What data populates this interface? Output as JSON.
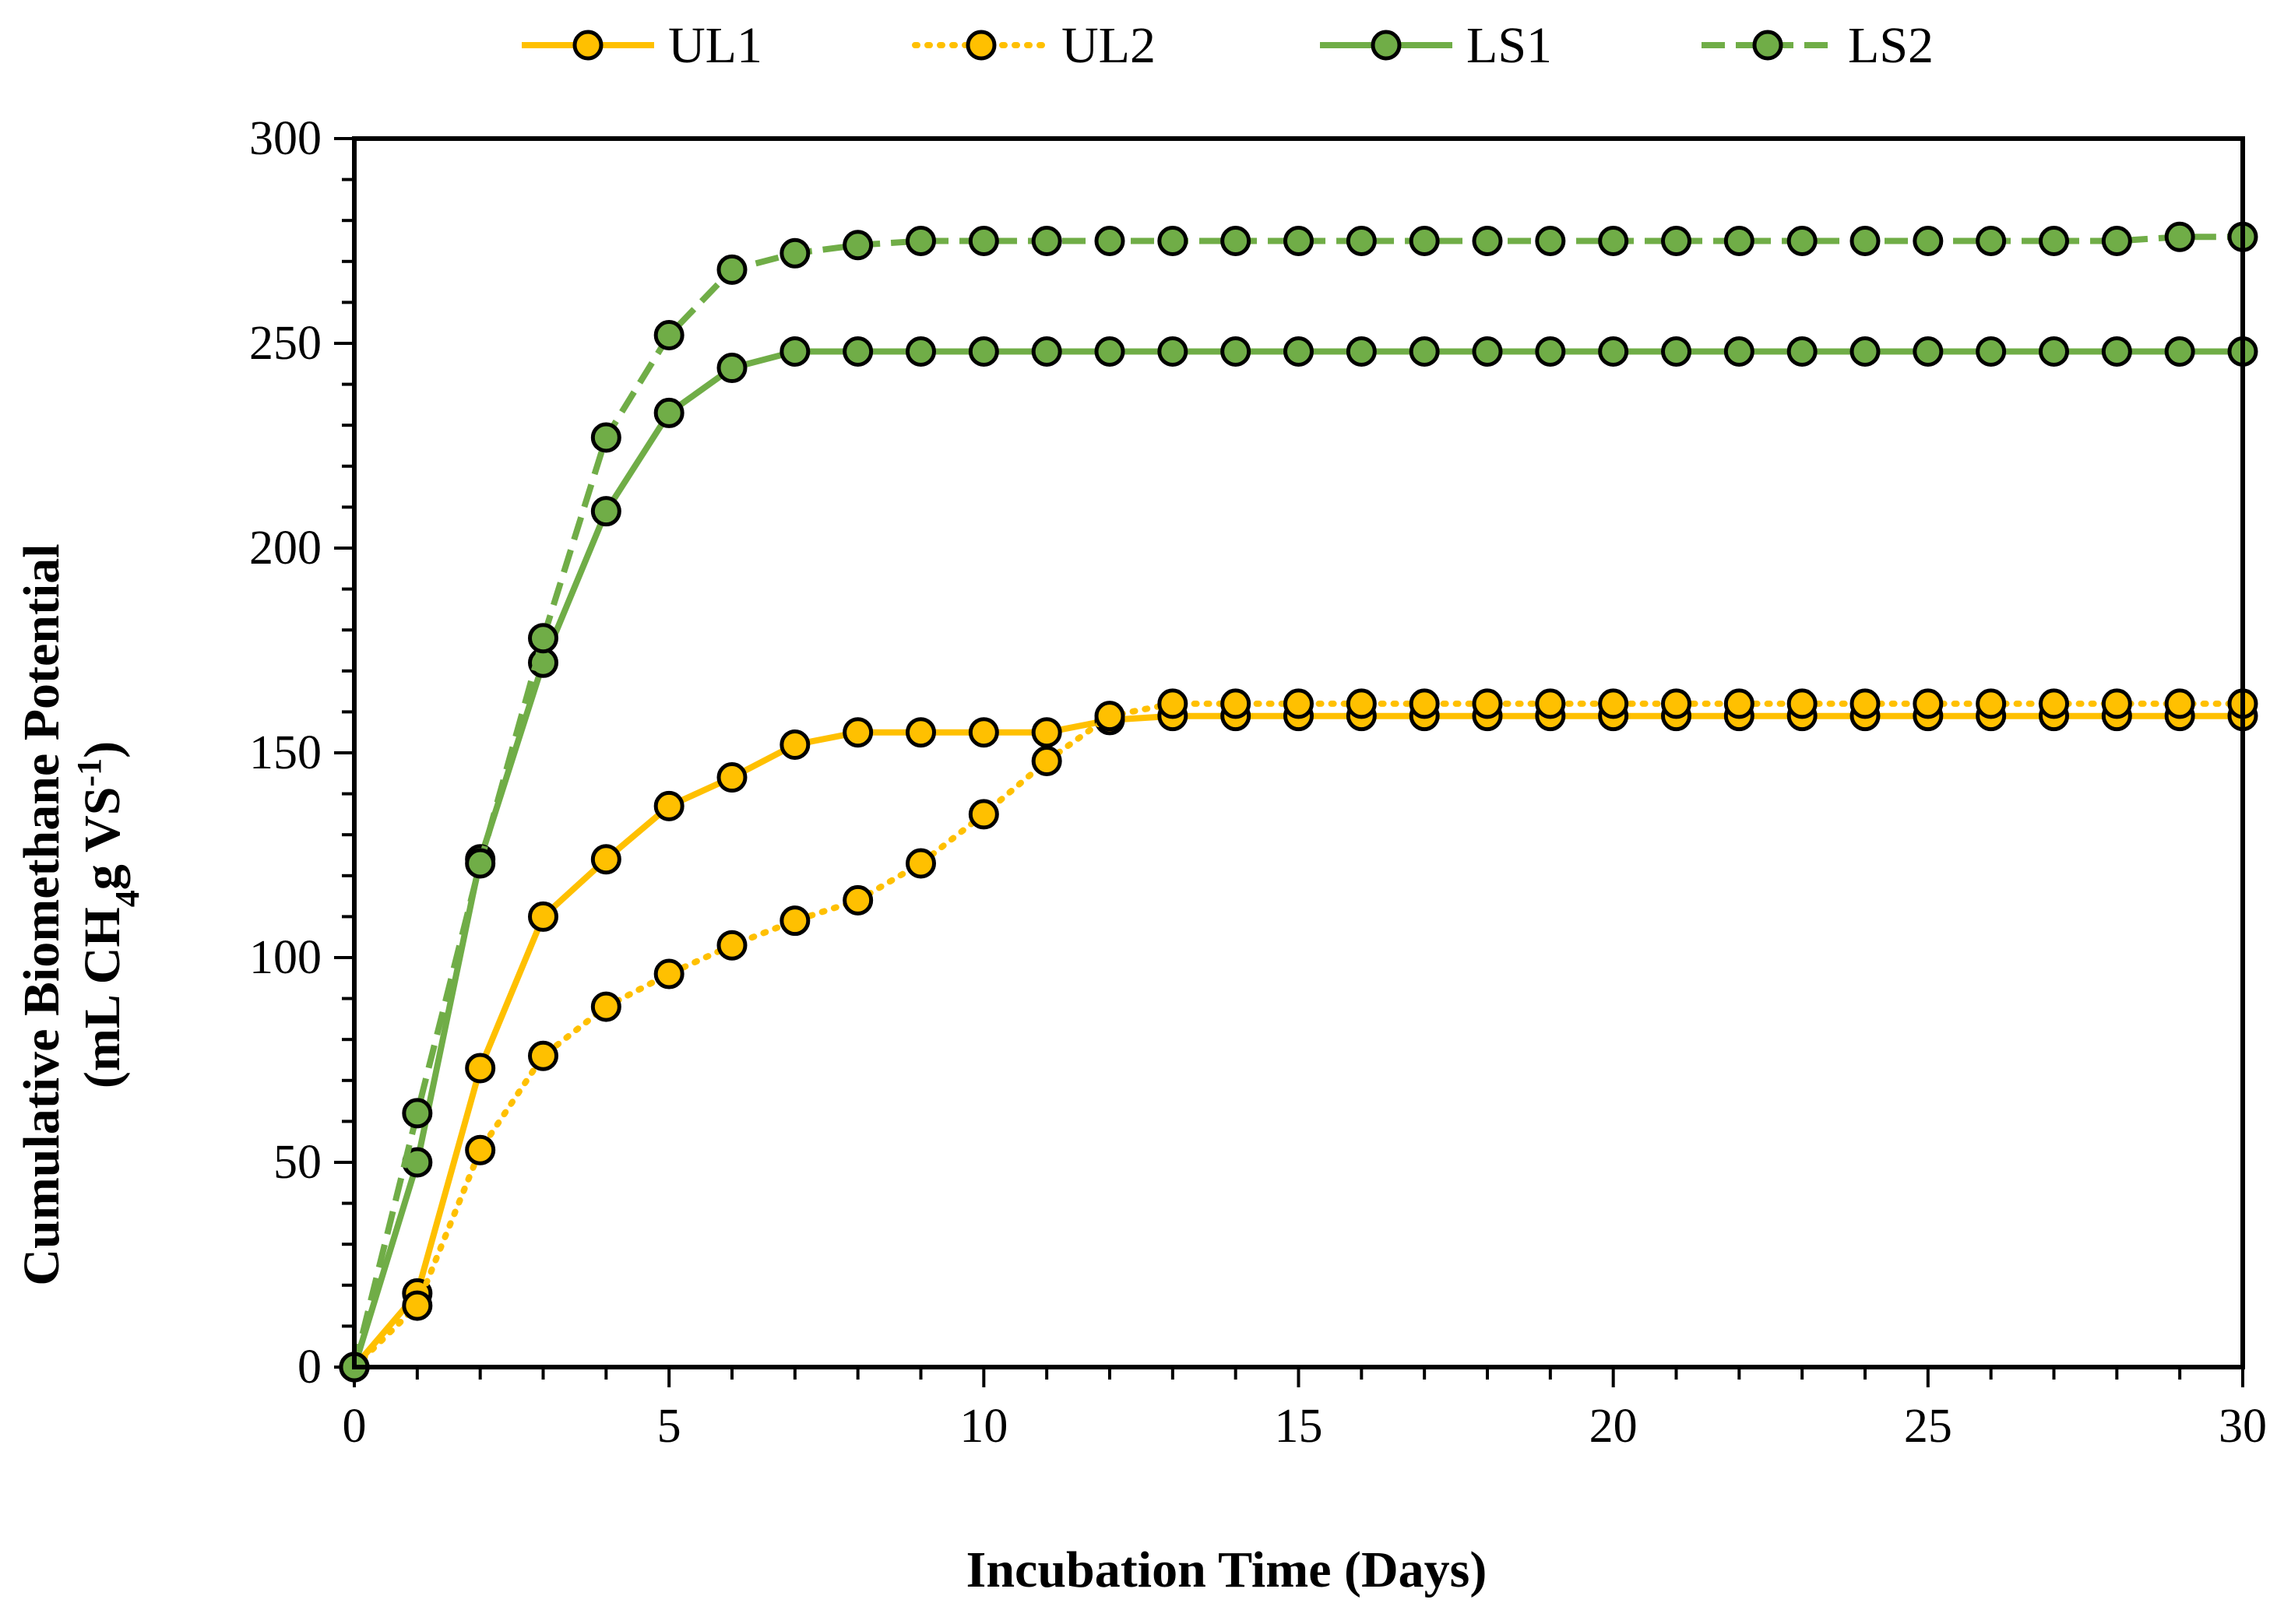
{
  "chart_data": {
    "type": "line",
    "title": "",
    "xlabel": "Incubation Time (Days)",
    "ylabel_line1": "Cumulative Biomethane Potential",
    "ylabel_line2_prefix": "(mL CH",
    "ylabel_line2_sub": "4",
    "ylabel_line2_mid": "g VS",
    "ylabel_line2_sup": "-1",
    "ylabel_line2_suffix": ")",
    "xlim": [
      0,
      30
    ],
    "ylim": [
      0,
      300
    ],
    "xticks": [
      "0",
      "5",
      "10",
      "15",
      "20",
      "25",
      "30"
    ],
    "yticks": [
      "0",
      "50",
      "100",
      "150",
      "200",
      "250",
      "300"
    ],
    "x": [
      0,
      1,
      2,
      3,
      4,
      5,
      6,
      7,
      8,
      9,
      10,
      11,
      12,
      13,
      14,
      15,
      16,
      17,
      18,
      19,
      20,
      21,
      22,
      23,
      24,
      25,
      26,
      27,
      28,
      29,
      30
    ],
    "legend_position": "top",
    "series": [
      {
        "name": "UL1",
        "color": "#FFC000",
        "marker_fill": "#FFC000",
        "dash": "solid",
        "values": [
          0,
          18,
          73,
          110,
          124,
          137,
          144,
          152,
          155,
          155,
          155,
          155,
          158,
          159,
          159,
          159,
          159,
          159,
          159,
          159,
          159,
          159,
          159,
          159,
          159,
          159,
          159,
          159,
          159,
          159,
          159
        ]
      },
      {
        "name": "UL2",
        "color": "#FFC000",
        "marker_fill": "#FFC000",
        "dash": "dotted",
        "values": [
          0,
          15,
          53,
          76,
          88,
          96,
          103,
          109,
          114,
          123,
          135,
          148,
          159,
          162,
          162,
          162,
          162,
          162,
          162,
          162,
          162,
          162,
          162,
          162,
          162,
          162,
          162,
          162,
          162,
          162,
          162
        ]
      },
      {
        "name": "LS1",
        "color": "#70AD47",
        "marker_fill": "#70AD47",
        "dash": "solid",
        "values": [
          0,
          50,
          124,
          172,
          209,
          233,
          244,
          248,
          248,
          248,
          248,
          248,
          248,
          248,
          248,
          248,
          248,
          248,
          248,
          248,
          248,
          248,
          248,
          248,
          248,
          248,
          248,
          248,
          248,
          248,
          248
        ]
      },
      {
        "name": "LS2",
        "color": "#70AD47",
        "marker_fill": "#70AD47",
        "dash": "dashed",
        "values": [
          0,
          62,
          123,
          178,
          227,
          252,
          268,
          272,
          274,
          275,
          275,
          275,
          275,
          275,
          275,
          275,
          275,
          275,
          275,
          275,
          275,
          275,
          275,
          275,
          275,
          275,
          275,
          275,
          275,
          276,
          276
        ]
      }
    ]
  }
}
